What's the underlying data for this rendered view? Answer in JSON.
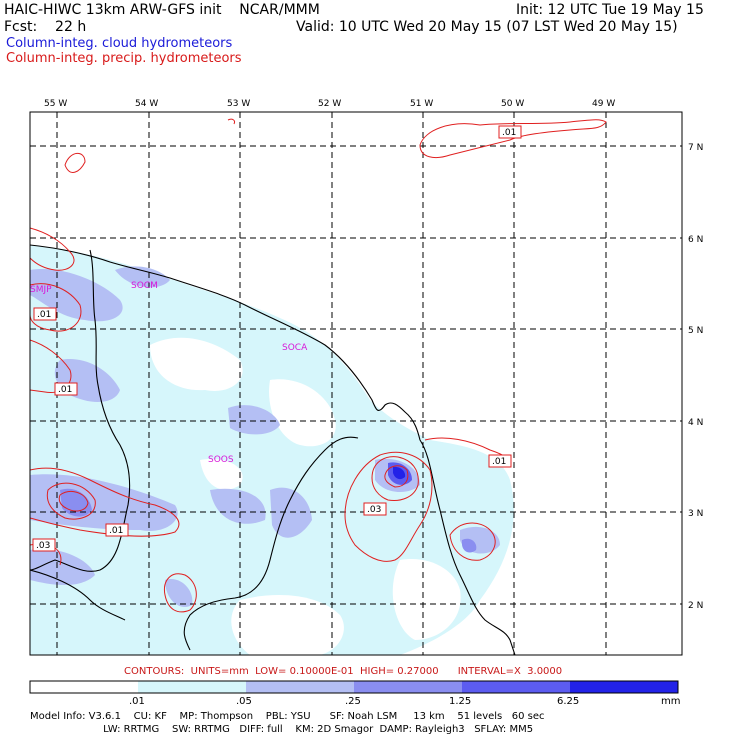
{
  "header": {
    "line1_left": "HAIC-HIWC 13km ARW-GFS init    NCAR/MMM",
    "line1_right": "Init: 12 UTC Tue 19 May 15",
    "line2_left": "Fcst:    22 h",
    "line2_right": "Valid: 10 UTC Wed 20 May 15 (07 LST Wed 20 May 15)",
    "field1": "Column-integ. cloud hydrometeors",
    "field2": "Column-integ. precip. hydrometeors"
  },
  "colors": {
    "cloud_text": "#1a1ad8",
    "precip_text": "#d81a1a",
    "fill_1": "#d6f6fb",
    "fill_2": "#b4bff4",
    "fill_3": "#8a8ef0",
    "fill_4": "#5c5cf0",
    "fill_5": "#2222e8",
    "contour": "#e02020",
    "station": "#d818d8"
  },
  "map": {
    "lon_labels": [
      "55 W",
      "54 W",
      "53 W",
      "52 W",
      "51 W",
      "50 W",
      "49 W"
    ],
    "lat_labels": [
      "7 N",
      "6 N",
      "5 N",
      "4 N",
      "3 N",
      "2 N"
    ],
    "stations": [
      "SMJP",
      "SOCM",
      "SOCA",
      "SOOS"
    ],
    "contour_labels": [
      ".01",
      ".01",
      ".01",
      ".01",
      ".03",
      ".01",
      ".03"
    ]
  },
  "contours_info": "CONTOURS:  UNITS=mm  LOW= 0.10000E-01  HIGH= 0.27000      INTERVAL=X  3.0000",
  "colorbar": {
    "ticks": [
      ".01",
      ".05",
      ".25",
      "1.25",
      "6.25"
    ],
    "unit": "mm"
  },
  "footer": {
    "line1": "Model Info: V3.6.1    CU: KF    MP: Thompson    PBL: YSU      SF: Noah LSM     13 km    51 levels   60 sec",
    "line2": "                       LW: RRTMG    SW: RRTMG   DIFF: full    KM: 2D Smagor  DAMP: Rayleigh3   SFLAY: MM5"
  }
}
